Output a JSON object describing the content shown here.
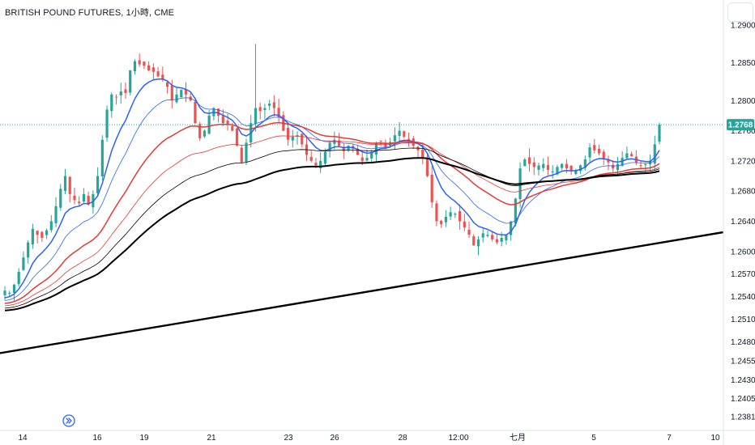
{
  "header": {
    "title": "BRITISH POUND FUTURES, 1小時, CME"
  },
  "icons": {
    "navigation": "fast-forward-icon"
  },
  "colors": {
    "up": "#26a69a",
    "down": "#ef5350",
    "last_price_bg": "#26a69a",
    "ma_blue": "#2962ff",
    "ma_red": "#e53935",
    "ma_black": "#000000",
    "trendline": "#000000"
  },
  "chart_data": {
    "type": "candlestick",
    "symbol": "BRITISH POUND FUTURES",
    "interval": "1小時",
    "exchange": "CME",
    "last_price": "1.2768",
    "y_axis": {
      "position": "right",
      "ylim": [
        1.237,
        1.292
      ],
      "tick_labels": [
        "1.2900",
        "1.2850",
        "1.2800",
        "1.2760",
        "1.2720",
        "1.2680",
        "1.2640",
        "1.2600",
        "1.2570",
        "1.2540",
        "1.2510",
        "1.2480",
        "1.2455",
        "1.2430",
        "1.2405",
        "1.2381"
      ]
    },
    "x_axis": {
      "tick_labels": [
        "14",
        "16",
        "19",
        "21",
        "23",
        "26",
        "28",
        "12:00",
        "七月",
        "5",
        "7",
        "10"
      ]
    },
    "price_path": [
      1.2548,
      1.2545,
      1.2556,
      1.2573,
      1.2592,
      1.2612,
      1.263,
      1.2622,
      1.2618,
      1.2628,
      1.264,
      1.266,
      1.2683,
      1.27,
      1.2676,
      1.2668,
      1.2664,
      1.2676,
      1.2662,
      1.2676,
      1.27,
      1.2748,
      1.2788,
      1.2808,
      1.2804,
      1.2812,
      1.281,
      1.284,
      1.2852,
      1.2848,
      1.2846,
      1.284,
      1.2838,
      1.2832,
      1.2828,
      1.2818,
      1.28,
      1.2808,
      1.2814,
      1.2808,
      1.28,
      1.277,
      1.275,
      1.276,
      1.278,
      1.279,
      1.278,
      1.277,
      1.2768,
      1.276,
      1.274,
      1.2718,
      1.2744,
      1.277,
      1.279,
      1.2786,
      1.279,
      1.2796,
      1.279,
      1.2778,
      1.276,
      1.2748,
      1.2752,
      1.2754,
      1.2742,
      1.2728,
      1.272,
      1.2714,
      1.272,
      1.2732,
      1.2744,
      1.2748,
      1.274,
      1.2733,
      1.274,
      1.2736,
      1.2728,
      1.272,
      1.2724,
      1.2732,
      1.2744,
      1.2746,
      1.2738,
      1.2745,
      1.2754,
      1.276,
      1.2752,
      1.2746,
      1.274,
      1.2734,
      1.2724,
      1.27,
      1.2665,
      1.264,
      1.2636,
      1.2646,
      1.2652,
      1.265,
      1.264,
      1.2632,
      1.2622,
      1.2608,
      1.2616,
      1.2624,
      1.2622,
      1.2616,
      1.2612,
      1.2618,
      1.2622,
      1.264,
      1.267,
      1.271,
      1.2722,
      1.2716,
      1.2712,
      1.2714,
      1.2716,
      1.2708,
      1.2706,
      1.2712,
      1.2716,
      1.271,
      1.2706,
      1.2708,
      1.2714,
      1.2722,
      1.2738,
      1.2734,
      1.273,
      1.2722,
      1.2718,
      1.271,
      1.2716,
      1.2724,
      1.273,
      1.2726,
      1.2718,
      1.2714,
      1.2716,
      1.272,
      1.2742,
      1.2768
    ],
    "moving_averages": [
      {
        "color": "#2962ff",
        "width": 1.5,
        "period": 8
      },
      {
        "color": "#2962ff",
        "width": 0.8,
        "period": 16
      },
      {
        "color": "#e53935",
        "width": 1.5,
        "period": 30
      },
      {
        "color": "#e53935",
        "width": 0.8,
        "period": 45
      },
      {
        "color": "#000000",
        "width": 0.8,
        "period": 60
      },
      {
        "color": "#000000",
        "width": 2.0,
        "period": 80
      }
    ],
    "trendline": {
      "color": "#000000",
      "points": [
        {
          "bar": -10,
          "price": 1.2456
        },
        {
          "bar": 200,
          "price": 1.2672
        }
      ]
    },
    "grid": false
  }
}
